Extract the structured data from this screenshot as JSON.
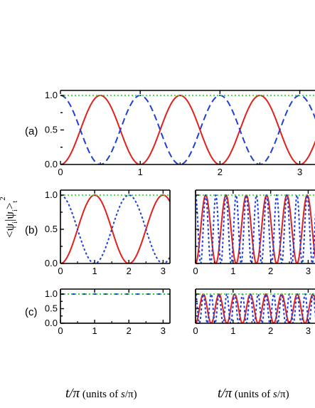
{
  "chart_data": [
    {
      "id": "a",
      "type": "line",
      "panel_label": "(a)",
      "xlim": [
        0,
        3.2
      ],
      "ylim": [
        0,
        1.0
      ],
      "xticks": [
        "0",
        "1",
        "2",
        "3"
      ],
      "yticks": [
        "0.0",
        "0.5",
        "1.0"
      ],
      "series": [
        {
          "style": "solid",
          "color": "#e0211d",
          "function": "sin2",
          "freq": 1
        },
        {
          "style": "dashed",
          "color": "#1f3fd6",
          "function": "cos2",
          "freq": 1
        },
        {
          "style": "dotted",
          "color": "#33dd33",
          "function": "const",
          "value": 1.0
        }
      ]
    },
    {
      "id": "b-left",
      "type": "line",
      "panel_label": "(b)",
      "xlim": [
        0,
        3.2
      ],
      "ylim": [
        0,
        1.0
      ],
      "xticks": [
        "0",
        "1",
        "2",
        "3"
      ],
      "yticks": [
        "0.0",
        "0.5",
        "1.0"
      ],
      "series": [
        {
          "style": "solid",
          "color": "#e0211d",
          "function": "sin2",
          "freq": 0.5
        },
        {
          "style": "dotted-blue",
          "color": "#1f3fd6",
          "function": "cos2",
          "freq": 0.5
        },
        {
          "style": "dotted",
          "color": "#33dd33",
          "function": "const",
          "value": 1.0
        }
      ]
    },
    {
      "id": "b-right",
      "type": "line",
      "panel_label": "",
      "xlim": [
        0,
        3.2
      ],
      "ylim": [
        0,
        1.0
      ],
      "xticks": [
        "0",
        "1",
        "2",
        "3"
      ],
      "yticks": [],
      "series": [
        {
          "style": "solid",
          "color": "#e0211d",
          "function": "sin2",
          "freq": 1.85
        },
        {
          "style": "dotted-blue",
          "color": "#1f3fd6",
          "function": "cos2",
          "freq": 3.7
        },
        {
          "style": "dotted",
          "color": "#33dd33",
          "function": "const",
          "value": 1.0
        }
      ]
    },
    {
      "id": "c-left",
      "type": "line",
      "panel_label": "(c)",
      "xlim": [
        0,
        3.2
      ],
      "ylim": [
        0,
        1.0
      ],
      "xticks": [
        "0",
        "1",
        "2",
        "3"
      ],
      "yticks": [
        "0.0",
        "0.5",
        "1.0"
      ],
      "series": [
        {
          "style": "solid",
          "color": "#e0211d",
          "function": "const",
          "value": 0.0
        },
        {
          "style": "dashdot",
          "color": "#1f3fd6",
          "function": "const",
          "value": 1.0
        },
        {
          "style": "dotted",
          "color": "#33dd33",
          "function": "const",
          "value": 1.0
        }
      ]
    },
    {
      "id": "c-right",
      "type": "line",
      "panel_label": "",
      "xlim": [
        0,
        3.2
      ],
      "ylim": [
        0,
        1.0
      ],
      "xticks": [
        "0",
        "1",
        "2",
        "3"
      ],
      "yticks": [],
      "series": [
        {
          "style": "solid",
          "color": "#e0211d",
          "function": "sin2",
          "freq": 2.4
        },
        {
          "style": "dotted-blue",
          "color": "#1f3fd6",
          "function": "cos2",
          "freq": 4.8
        },
        {
          "style": "dotted",
          "color": "#33dd33",
          "function": "const",
          "value": 1.0
        }
      ]
    }
  ],
  "ylabel": {
    "main": "<ψ",
    "sub_i1": "i",
    "bar": "|ψ",
    "sub_i2": "i",
    "close": ">",
    "sub_t": "t",
    "sup": "2"
  },
  "xlabel": {
    "t": "t",
    "over": "/π",
    "units_pre": " (units of ",
    "s": "s",
    "pi": "/π",
    "units_post": ")"
  }
}
